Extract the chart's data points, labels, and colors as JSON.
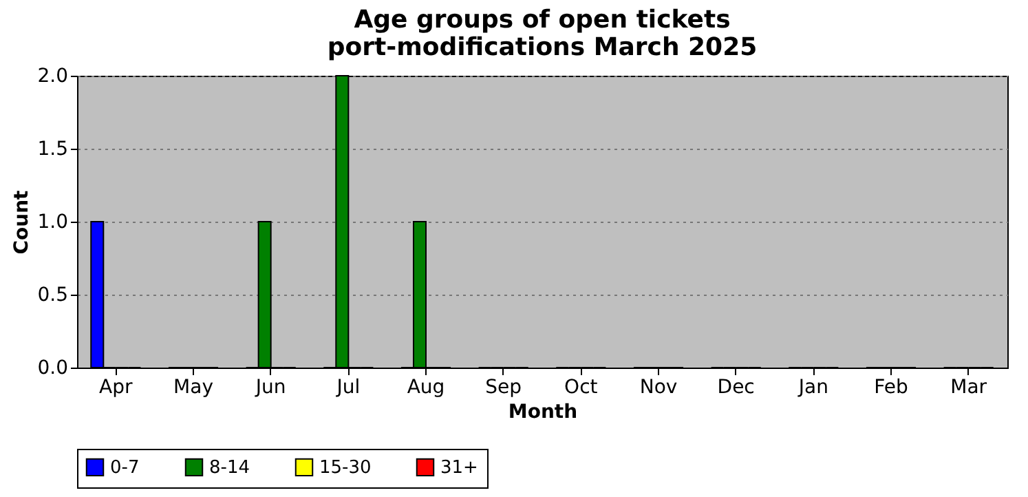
{
  "chart_data": {
    "type": "bar",
    "title": "Age groups of open tickets\nport-modifications March 2025",
    "xlabel": "Month",
    "ylabel": "Count",
    "categories": [
      "Apr",
      "May",
      "Jun",
      "Jul",
      "Aug",
      "Sep",
      "Oct",
      "Nov",
      "Dec",
      "Jan",
      "Feb",
      "Mar"
    ],
    "series": [
      {
        "name": "0-7",
        "color": "#0000ff",
        "values": [
          1,
          0,
          0,
          0,
          0,
          0,
          0,
          0,
          0,
          0,
          0,
          0
        ]
      },
      {
        "name": "8-14",
        "color": "#008000",
        "values": [
          0,
          0,
          1,
          2,
          1,
          0,
          0,
          0,
          0,
          0,
          0,
          0
        ]
      },
      {
        "name": "15-30",
        "color": "#ffff00",
        "values": [
          0,
          0,
          0,
          0,
          0,
          0,
          0,
          0,
          0,
          0,
          0,
          0
        ]
      },
      {
        "name": "31+",
        "color": "#ff0000",
        "values": [
          0,
          0,
          0,
          0,
          0,
          0,
          0,
          0,
          0,
          0,
          0,
          0
        ]
      }
    ],
    "ylim": [
      0,
      2
    ],
    "yticks": [
      {
        "value": 0,
        "label": "0.0"
      },
      {
        "value": 0.5,
        "label": "0.5"
      },
      {
        "value": 1,
        "label": "1.0"
      },
      {
        "value": 1.5,
        "label": "1.5"
      },
      {
        "value": 2,
        "label": "2.0"
      }
    ],
    "grid": "y",
    "legend": "bottom"
  }
}
